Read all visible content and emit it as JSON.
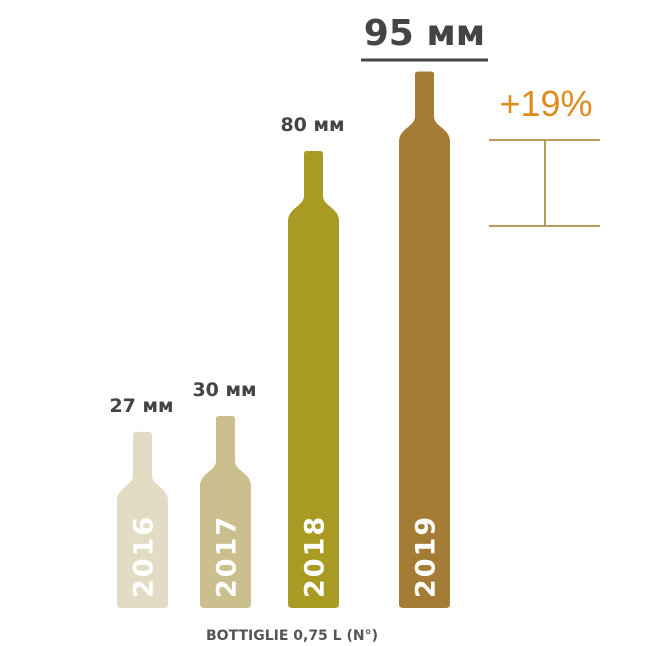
{
  "chart_data": {
    "type": "bar",
    "categories": [
      "2016",
      "2017",
      "2018",
      "2019"
    ],
    "values": [
      27,
      30,
      80,
      95
    ],
    "value_labels": [
      "27 мм",
      "30 мм",
      "80 мм",
      "95 мм"
    ],
    "colors": [
      "#e3dcc4",
      "#cbbf8e",
      "#a89a22",
      "#a57c35"
    ],
    "mark_shape": "bottle",
    "xlabel": "BOTTIGLIE 0,75 L (N°)",
    "ylabel": "",
    "grid": false,
    "annotation": {
      "text": "+19%",
      "color": "#e08a1e",
      "bracket_color": "#b89a5a"
    }
  }
}
